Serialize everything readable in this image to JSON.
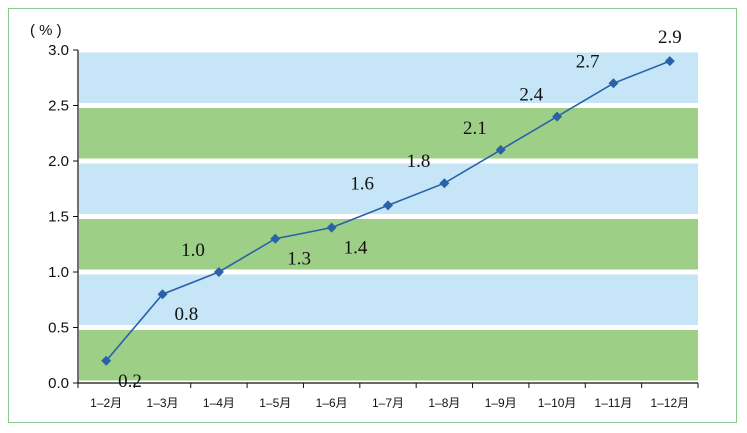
{
  "chart_data": {
    "type": "line",
    "unit_label": "( % )",
    "categories": [
      "1–2月",
      "1–3月",
      "1–4月",
      "1–5月",
      "1–6月",
      "1–7月",
      "1–8月",
      "1–9月",
      "1–10月",
      "1–11月",
      "1–12月"
    ],
    "values": [
      0.2,
      0.8,
      1.0,
      1.3,
      1.4,
      1.6,
      1.8,
      2.1,
      2.4,
      2.7,
      2.9
    ],
    "data_labels": [
      "0.2",
      "0.8",
      "1.0",
      "1.3",
      "1.4",
      "1.6",
      "1.8",
      "2.1",
      "2.4",
      "2.7",
      "2.9"
    ],
    "label_positions": [
      "right-below",
      "right-below",
      "above-left",
      "right-below",
      "right-below",
      "above-left",
      "above-left",
      "above-left",
      "above-left",
      "above-left",
      "above"
    ],
    "y_ticks": [
      "0.0",
      "0.5",
      "1.0",
      "1.5",
      "2.0",
      "2.5",
      "3.0"
    ],
    "ylim": [
      0,
      3.0
    ],
    "grid": false,
    "band_colors": [
      "#9ecf86",
      "#c6e6f7"
    ],
    "line_color": "#2a62a8",
    "marker_color": "#2a62a8",
    "frame_color": "#8fc98f"
  }
}
